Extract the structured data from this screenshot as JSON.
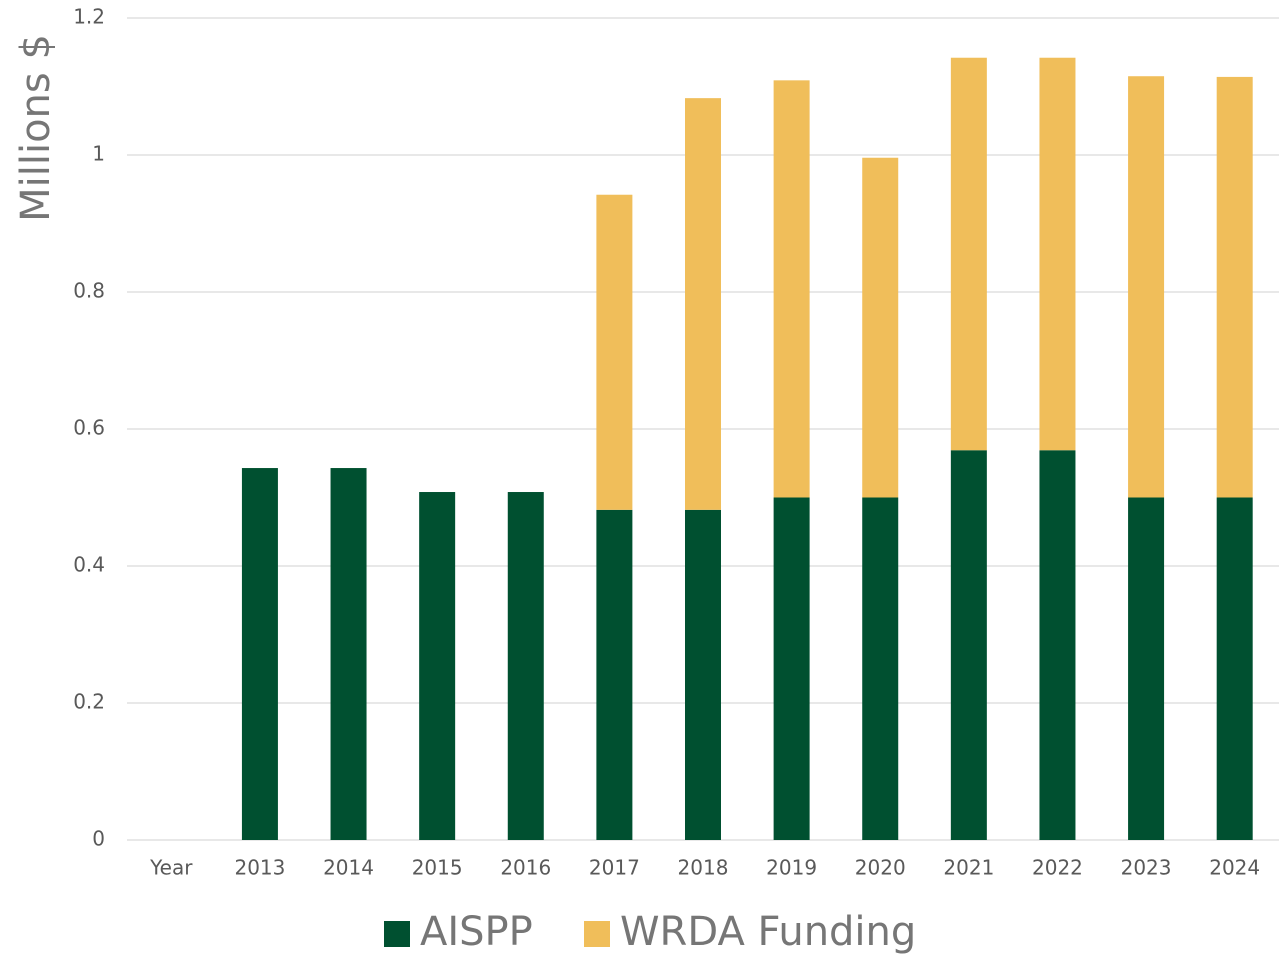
{
  "chart_data": {
    "type": "stacked_bar",
    "y_label": "Millions $",
    "categories": [
      "Year",
      "2013",
      "2014",
      "2015",
      "2016",
      "2017",
      "2018",
      "2019",
      "2020",
      "2021",
      "2022",
      "2023",
      "2024"
    ],
    "series": [
      {
        "name": "AISPP",
        "color": "#005030",
        "values": [
          null,
          0.543,
          0.543,
          0.508,
          0.508,
          0.482,
          0.482,
          0.5,
          0.5,
          0.569,
          0.569,
          0.5,
          0.5
        ]
      },
      {
        "name": "WRDA Funding",
        "color": "#f0be5a",
        "values": [
          null,
          null,
          null,
          null,
          null,
          0.46,
          0.601,
          0.609,
          0.496,
          0.573,
          0.573,
          0.615,
          0.614
        ]
      }
    ],
    "ylim": [
      0,
      1.2
    ],
    "yticks": [
      0,
      0.2,
      0.4,
      0.6,
      0.8,
      1,
      1.2
    ],
    "grid": true
  }
}
